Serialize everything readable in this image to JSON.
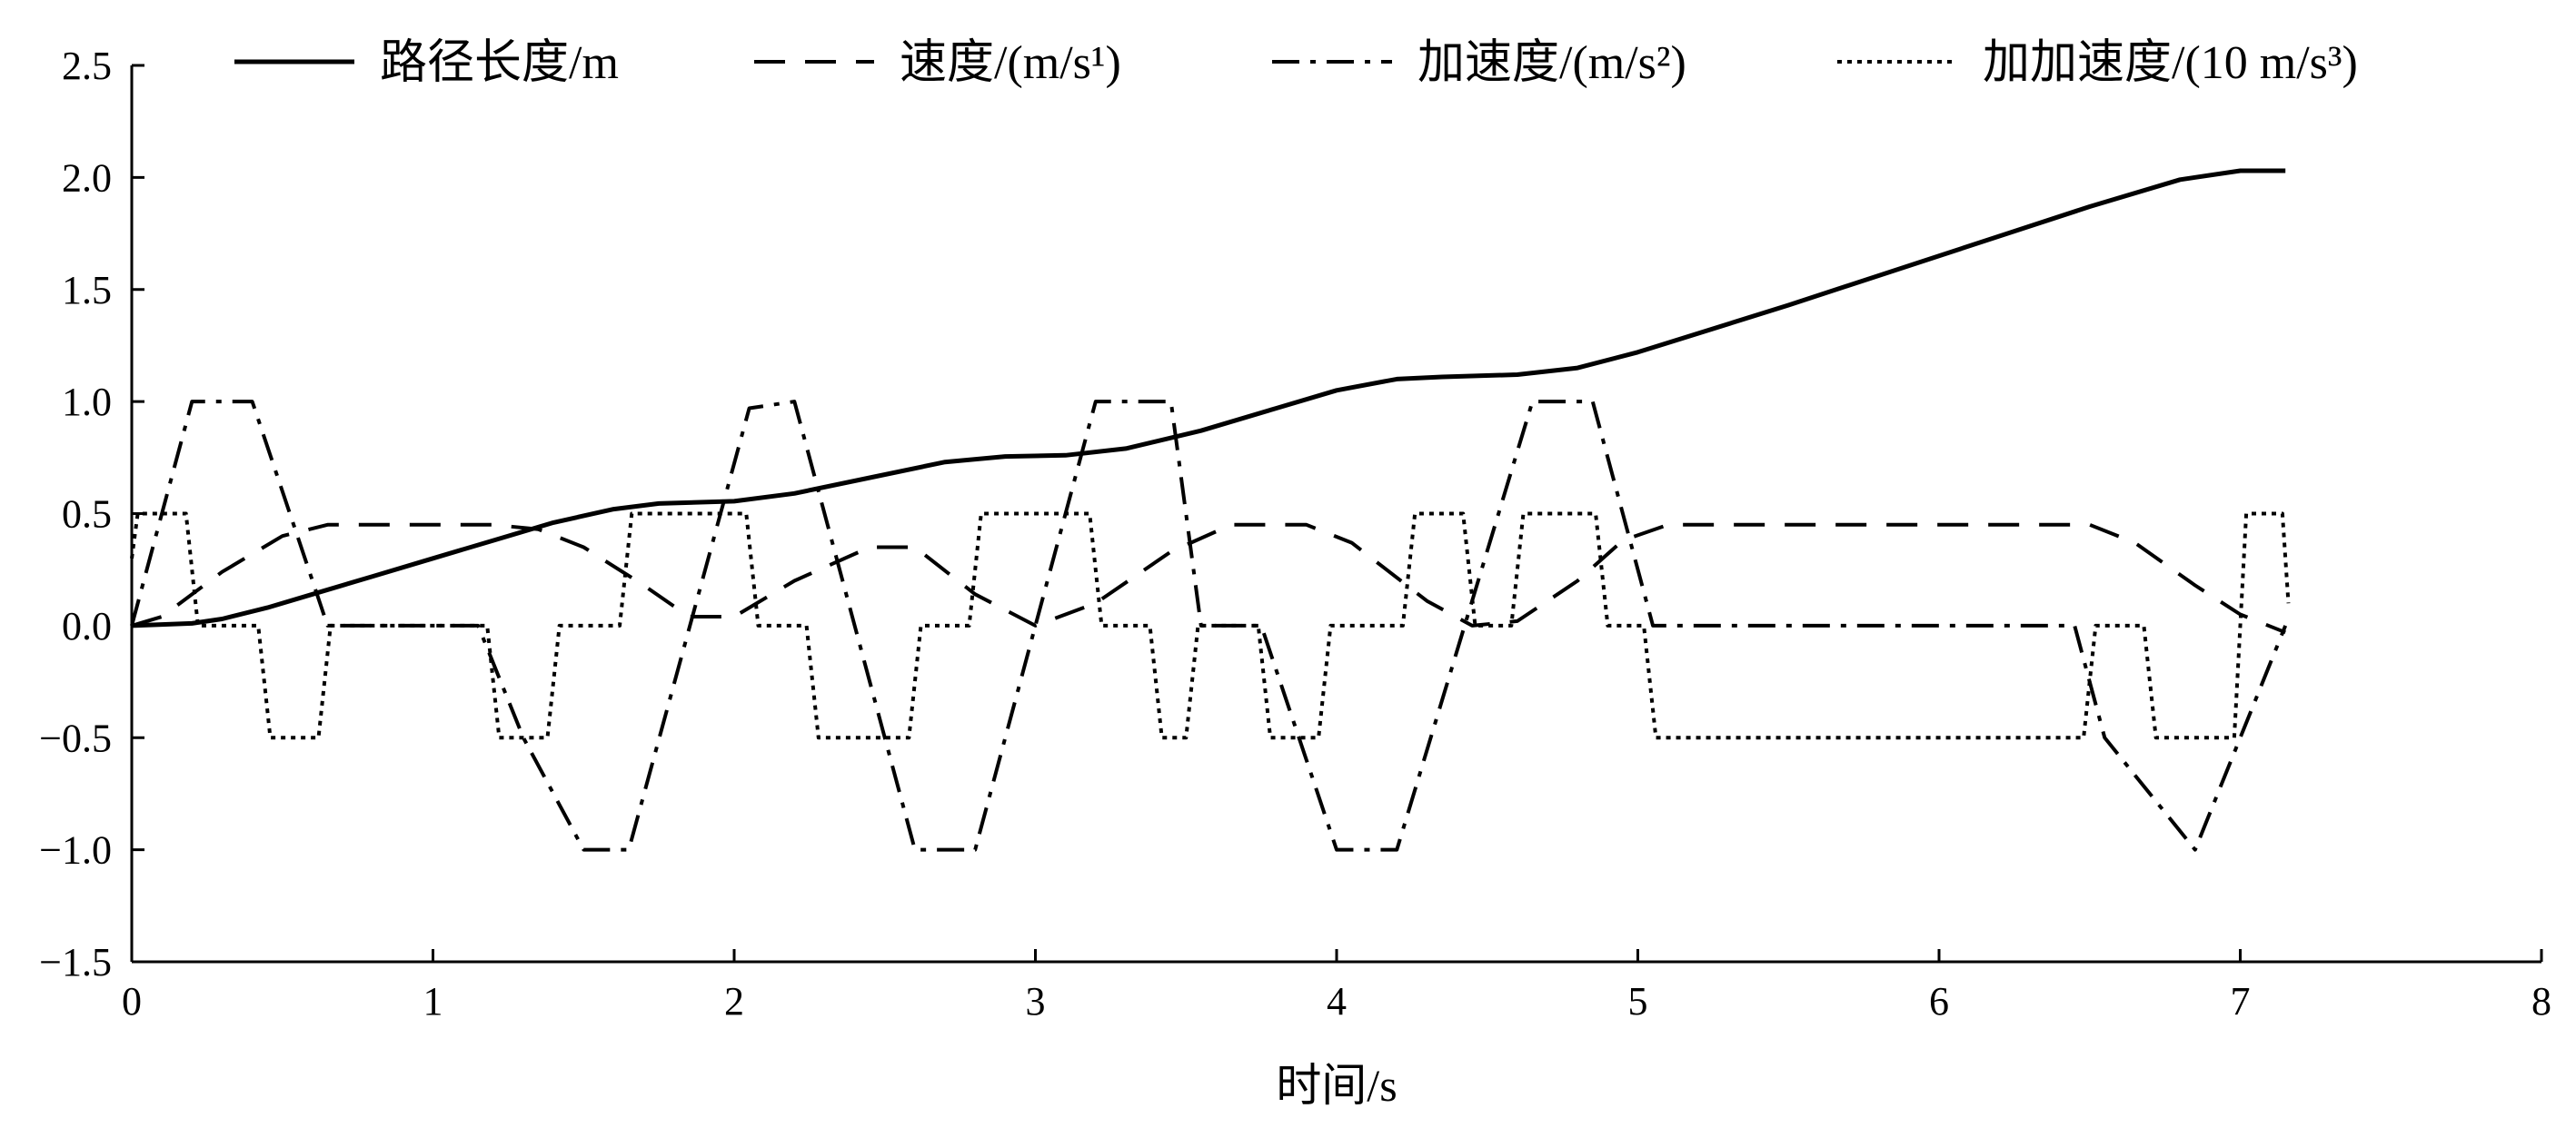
{
  "chart_data": {
    "type": "line",
    "xlabel": "时间/s",
    "ylabel": "",
    "xlim": [
      0,
      8
    ],
    "ylim": [
      -1.5,
      2.5
    ],
    "x_ticks": [
      0,
      1,
      2,
      3,
      4,
      5,
      6,
      7,
      8
    ],
    "y_ticks": [
      -1.5,
      -1.0,
      -0.5,
      0.0,
      0.5,
      1.0,
      1.5,
      2.0,
      2.5
    ],
    "x_tick_labels": [
      "0",
      "1",
      "2",
      "3",
      "4",
      "5",
      "6",
      "7",
      "8"
    ],
    "y_tick_labels": [
      "−1.5",
      "−1.0",
      "−0.5",
      "0.0",
      "0.5",
      "1.0",
      "1.5",
      "2.0",
      "2.5"
    ],
    "grid": false,
    "legend_position": "top",
    "series": [
      {
        "name": "路径长度/m",
        "style": "solid",
        "x": [
          0,
          0.2,
          0.3,
          0.45,
          0.6,
          0.8,
          1.0,
          1.2,
          1.4,
          1.6,
          1.75,
          2.0,
          2.2,
          2.45,
          2.7,
          2.9,
          3.1,
          3.3,
          3.55,
          3.8,
          4.0,
          4.2,
          4.35,
          4.6,
          4.8,
          5.0,
          5.5,
          6.0,
          6.5,
          6.8,
          7.0,
          7.15
        ],
        "values": [
          0,
          0.01,
          0.03,
          0.08,
          0.14,
          0.22,
          0.3,
          0.38,
          0.46,
          0.52,
          0.545,
          0.555,
          0.59,
          0.66,
          0.73,
          0.755,
          0.76,
          0.79,
          0.87,
          0.97,
          1.05,
          1.1,
          1.11,
          1.12,
          1.15,
          1.22,
          1.43,
          1.65,
          1.87,
          1.99,
          2.03,
          2.03
        ]
      },
      {
        "name": "速度/(m/s¹)",
        "style": "dashed",
        "x": [
          0,
          0.1,
          0.3,
          0.5,
          0.65,
          1.2,
          1.35,
          1.5,
          1.7,
          1.85,
          2.0,
          2.2,
          2.45,
          2.6,
          2.8,
          3.0,
          3.2,
          3.45,
          3.65,
          3.9,
          4.05,
          4.3,
          4.45,
          4.6,
          4.8,
          4.95,
          5.1,
          6.5,
          6.65,
          6.85,
          7.0,
          7.15
        ],
        "values": [
          0,
          0.04,
          0.24,
          0.4,
          0.45,
          0.45,
          0.43,
          0.35,
          0.18,
          0.04,
          0.04,
          0.2,
          0.35,
          0.35,
          0.14,
          0.0,
          0.1,
          0.33,
          0.45,
          0.45,
          0.37,
          0.11,
          0.0,
          0.02,
          0.2,
          0.38,
          0.45,
          0.45,
          0.37,
          0.18,
          0.05,
          -0.03
        ]
      },
      {
        "name": "加速度/(m/s²)",
        "style": "dashdot",
        "x": [
          0,
          0.2,
          0.4,
          0.65,
          0.85,
          1.15,
          1.3,
          1.5,
          1.65,
          2.05,
          2.2,
          2.6,
          2.8,
          3.2,
          3.45,
          3.55,
          3.75,
          4.0,
          4.2,
          4.65,
          4.85,
          5.05,
          6.45,
          6.55,
          6.85,
          7.15
        ],
        "values": [
          0,
          1.0,
          1.0,
          0.0,
          0.0,
          0.0,
          -0.5,
          -1.0,
          -1.0,
          0.97,
          1.0,
          -1.0,
          -1.0,
          1.0,
          1.0,
          0.0,
          0.0,
          -1.0,
          -1.0,
          1.0,
          1.0,
          0.0,
          0.0,
          -0.5,
          -1.0,
          0.0
        ]
      },
      {
        "name": "加加速度/(10 m/s³)",
        "style": "dotted",
        "x": [
          0,
          0.02,
          0.18,
          0.22,
          0.42,
          0.46,
          0.62,
          0.66,
          1.18,
          1.22,
          1.38,
          1.42,
          1.62,
          1.66,
          1.7,
          1.74,
          2.04,
          2.08,
          2.24,
          2.28,
          2.58,
          2.62,
          2.78,
          2.82,
          3.18,
          3.22,
          3.38,
          3.42,
          3.5,
          3.54,
          3.74,
          3.78,
          3.94,
          3.98,
          4.22,
          4.26,
          4.42,
          4.46,
          4.58,
          4.62,
          4.86,
          4.9,
          5.02,
          5.06,
          6.48,
          6.52,
          6.68,
          6.72,
          6.98,
          7.02,
          7.14,
          7.16
        ],
        "values": [
          0.3,
          0.5,
          0.5,
          0.0,
          0.0,
          -0.5,
          -0.5,
          0.0,
          0.0,
          -0.5,
          -0.5,
          0.0,
          0.0,
          0.5,
          0.5,
          0.5,
          0.5,
          0.0,
          0.0,
          -0.5,
          -0.5,
          0.0,
          0.0,
          0.5,
          0.5,
          0.0,
          0.0,
          -0.5,
          -0.5,
          0.0,
          0.0,
          -0.5,
          -0.5,
          0.0,
          0.0,
          0.5,
          0.5,
          0.0,
          0.0,
          0.5,
          0.5,
          0.0,
          0.0,
          -0.5,
          -0.5,
          0.0,
          0.0,
          -0.5,
          -0.5,
          0.5,
          0.5,
          0.1
        ]
      }
    ]
  }
}
